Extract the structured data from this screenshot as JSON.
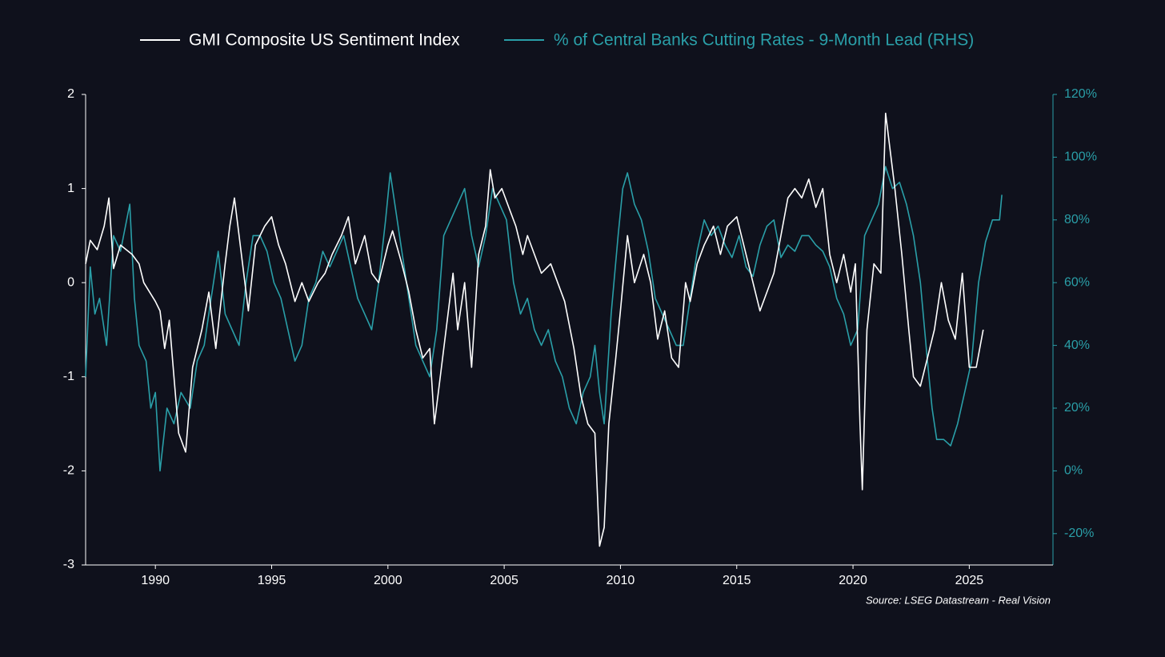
{
  "chart_data": {
    "type": "line",
    "source": "Source: LSEG Datastream - Real Vision",
    "xlim": [
      1987,
      2028.6
    ],
    "xticks": [
      1990,
      1995,
      2000,
      2005,
      2010,
      2015,
      2020,
      2025
    ],
    "ylim": [
      -3,
      2
    ],
    "yticks": [
      -3,
      -2,
      -1,
      0,
      1,
      2
    ],
    "y2lim": [
      -30,
      120
    ],
    "y2ticks": [
      {
        "value": -20,
        "label": "-20%"
      },
      {
        "value": 0,
        "label": "0%"
      },
      {
        "value": 20,
        "label": "20%"
      },
      {
        "value": 40,
        "label": "40%"
      },
      {
        "value": 60,
        "label": "60%"
      },
      {
        "value": 80,
        "label": "80%"
      },
      {
        "value": 100,
        "label": "100%"
      },
      {
        "value": 120,
        "label": "120%"
      }
    ],
    "series": [
      {
        "name": "GMI Composite US Sentiment Index",
        "color": "#ffffff",
        "axis": "y",
        "x": [
          1987.0,
          1987.2,
          1987.5,
          1987.8,
          1988.0,
          1988.2,
          1988.5,
          1989.0,
          1989.3,
          1989.5,
          1990.0,
          1990.2,
          1990.4,
          1990.6,
          1990.8,
          1991.0,
          1991.3,
          1991.6,
          1992.0,
          1992.3,
          1992.6,
          1993.0,
          1993.2,
          1993.4,
          1993.7,
          1994.0,
          1994.3,
          1994.7,
          1995.0,
          1995.3,
          1995.6,
          1996.0,
          1996.3,
          1996.6,
          1997.0,
          1997.3,
          1997.6,
          1998.0,
          1998.3,
          1998.6,
          1999.0,
          1999.3,
          1999.6,
          2000.0,
          2000.2,
          2000.6,
          2000.9,
          2001.2,
          2001.5,
          2001.8,
          2002.0,
          2002.2,
          2002.5,
          2002.8,
          2003.0,
          2003.3,
          2003.6,
          2003.9,
          2004.2,
          2004.4,
          2004.6,
          2004.9,
          2005.2,
          2005.5,
          2005.8,
          2006.0,
          2006.3,
          2006.6,
          2007.0,
          2007.3,
          2007.6,
          2008.0,
          2008.3,
          2008.6,
          2008.9,
          2009.1,
          2009.3,
          2009.5,
          2009.8,
          2010.0,
          2010.3,
          2010.6,
          2011.0,
          2011.3,
          2011.6,
          2011.9,
          2012.2,
          2012.5,
          2012.8,
          2013.0,
          2013.3,
          2013.6,
          2014.0,
          2014.3,
          2014.6,
          2015.0,
          2015.4,
          2015.7,
          2016.0,
          2016.3,
          2016.6,
          2016.9,
          2017.2,
          2017.5,
          2017.8,
          2018.1,
          2018.4,
          2018.7,
          2019.0,
          2019.3,
          2019.6,
          2019.9,
          2020.1,
          2020.3,
          2020.4,
          2020.6,
          2020.9,
          2021.2,
          2021.4,
          2021.6,
          2021.8,
          2022.1,
          2022.4,
          2022.6,
          2022.9,
          2023.2,
          2023.5,
          2023.8,
          2024.1,
          2024.4,
          2024.7,
          2025.0,
          2025.3,
          2025.6
        ],
        "values": [
          0.2,
          0.45,
          0.35,
          0.6,
          0.9,
          0.15,
          0.4,
          0.3,
          0.2,
          0.0,
          -0.2,
          -0.3,
          -0.7,
          -0.4,
          -1.0,
          -1.6,
          -1.8,
          -0.9,
          -0.5,
          -0.1,
          -0.7,
          0.2,
          0.6,
          0.9,
          0.3,
          -0.3,
          0.4,
          0.6,
          0.7,
          0.4,
          0.2,
          -0.2,
          0.0,
          -0.2,
          0.0,
          0.1,
          0.3,
          0.5,
          0.7,
          0.2,
          0.5,
          0.1,
          0.0,
          0.4,
          0.55,
          0.2,
          -0.1,
          -0.5,
          -0.8,
          -0.7,
          -1.5,
          -1.1,
          -0.5,
          0.1,
          -0.5,
          0.0,
          -0.9,
          0.3,
          0.6,
          1.2,
          0.9,
          1.0,
          0.8,
          0.6,
          0.3,
          0.5,
          0.3,
          0.1,
          0.2,
          0.0,
          -0.2,
          -0.7,
          -1.2,
          -1.5,
          -1.6,
          -2.8,
          -2.6,
          -1.5,
          -0.8,
          -0.3,
          0.5,
          0.0,
          0.3,
          0.0,
          -0.6,
          -0.3,
          -0.8,
          -0.9,
          0.0,
          -0.2,
          0.2,
          0.4,
          0.6,
          0.3,
          0.6,
          0.7,
          0.3,
          0.0,
          -0.3,
          -0.1,
          0.1,
          0.5,
          0.9,
          1.0,
          0.9,
          1.1,
          0.8,
          1.0,
          0.3,
          0.0,
          0.3,
          -0.1,
          0.2,
          -1.5,
          -2.2,
          -0.5,
          0.2,
          0.1,
          1.8,
          1.4,
          1.0,
          0.3,
          -0.5,
          -1.0,
          -1.1,
          -0.8,
          -0.5,
          0.0,
          -0.4,
          -0.6,
          0.1,
          -0.9,
          -0.9,
          -0.5
        ]
      },
      {
        "name": "% of Central Banks Cutting Rates - 9-Month Lead (RHS)",
        "color": "#2a9fa8",
        "axis": "y2",
        "x": [
          1987.0,
          1987.2,
          1987.4,
          1987.6,
          1987.9,
          1988.2,
          1988.5,
          1988.9,
          1989.1,
          1989.3,
          1989.6,
          1989.8,
          1990.0,
          1990.2,
          1990.5,
          1990.8,
          1991.1,
          1991.5,
          1991.8,
          1992.1,
          1992.4,
          1992.7,
          1993.0,
          1993.3,
          1993.6,
          1993.9,
          1994.2,
          1994.5,
          1994.8,
          1995.1,
          1995.4,
          1995.7,
          1996.0,
          1996.3,
          1996.6,
          1996.9,
          1997.2,
          1997.5,
          1997.8,
          1998.1,
          1998.4,
          1998.7,
          1999.0,
          1999.3,
          1999.6,
          1999.9,
          2000.1,
          2000.3,
          2000.6,
          2000.9,
          2001.2,
          2001.5,
          2001.8,
          2002.1,
          2002.4,
          2002.7,
          2003.0,
          2003.3,
          2003.6,
          2003.9,
          2004.2,
          2004.5,
          2004.8,
          2005.1,
          2005.4,
          2005.7,
          2006.0,
          2006.3,
          2006.6,
          2006.9,
          2007.2,
          2007.5,
          2007.8,
          2008.1,
          2008.4,
          2008.7,
          2008.9,
          2009.1,
          2009.3,
          2009.6,
          2009.9,
          2010.1,
          2010.3,
          2010.6,
          2010.9,
          2011.2,
          2011.5,
          2011.8,
          2012.1,
          2012.4,
          2012.7,
          2013.0,
          2013.3,
          2013.6,
          2013.9,
          2014.2,
          2014.5,
          2014.8,
          2015.1,
          2015.4,
          2015.7,
          2016.0,
          2016.3,
          2016.6,
          2016.9,
          2017.2,
          2017.5,
          2017.8,
          2018.1,
          2018.4,
          2018.7,
          2019.0,
          2019.3,
          2019.6,
          2019.9,
          2020.2,
          2020.5,
          2020.8,
          2021.1,
          2021.4,
          2021.7,
          2022.0,
          2022.3,
          2022.6,
          2022.9,
          2023.2,
          2023.4,
          2023.6,
          2023.9,
          2024.2,
          2024.5,
          2024.8,
          2025.1,
          2025.4,
          2025.7,
          2026.0,
          2026.3,
          2026.4
        ],
        "values": [
          30,
          65,
          50,
          55,
          40,
          75,
          70,
          85,
          55,
          40,
          35,
          20,
          25,
          0,
          20,
          15,
          25,
          20,
          35,
          40,
          55,
          70,
          50,
          45,
          40,
          60,
          75,
          75,
          70,
          60,
          55,
          45,
          35,
          40,
          55,
          60,
          70,
          65,
          70,
          75,
          65,
          55,
          50,
          45,
          60,
          80,
          95,
          85,
          70,
          55,
          40,
          35,
          30,
          45,
          75,
          80,
          85,
          90,
          75,
          65,
          75,
          90,
          85,
          80,
          60,
          50,
          55,
          45,
          40,
          45,
          35,
          30,
          20,
          15,
          25,
          30,
          40,
          25,
          15,
          50,
          75,
          90,
          95,
          85,
          80,
          70,
          55,
          50,
          45,
          40,
          40,
          55,
          70,
          80,
          75,
          78,
          72,
          68,
          75,
          65,
          62,
          72,
          78,
          80,
          68,
          72,
          70,
          75,
          75,
          72,
          70,
          65,
          55,
          50,
          40,
          45,
          75,
          80,
          85,
          97,
          90,
          92,
          85,
          75,
          60,
          35,
          20,
          10,
          10,
          8,
          15,
          25,
          35,
          60,
          73,
          80,
          80,
          88
        ]
      }
    ]
  }
}
